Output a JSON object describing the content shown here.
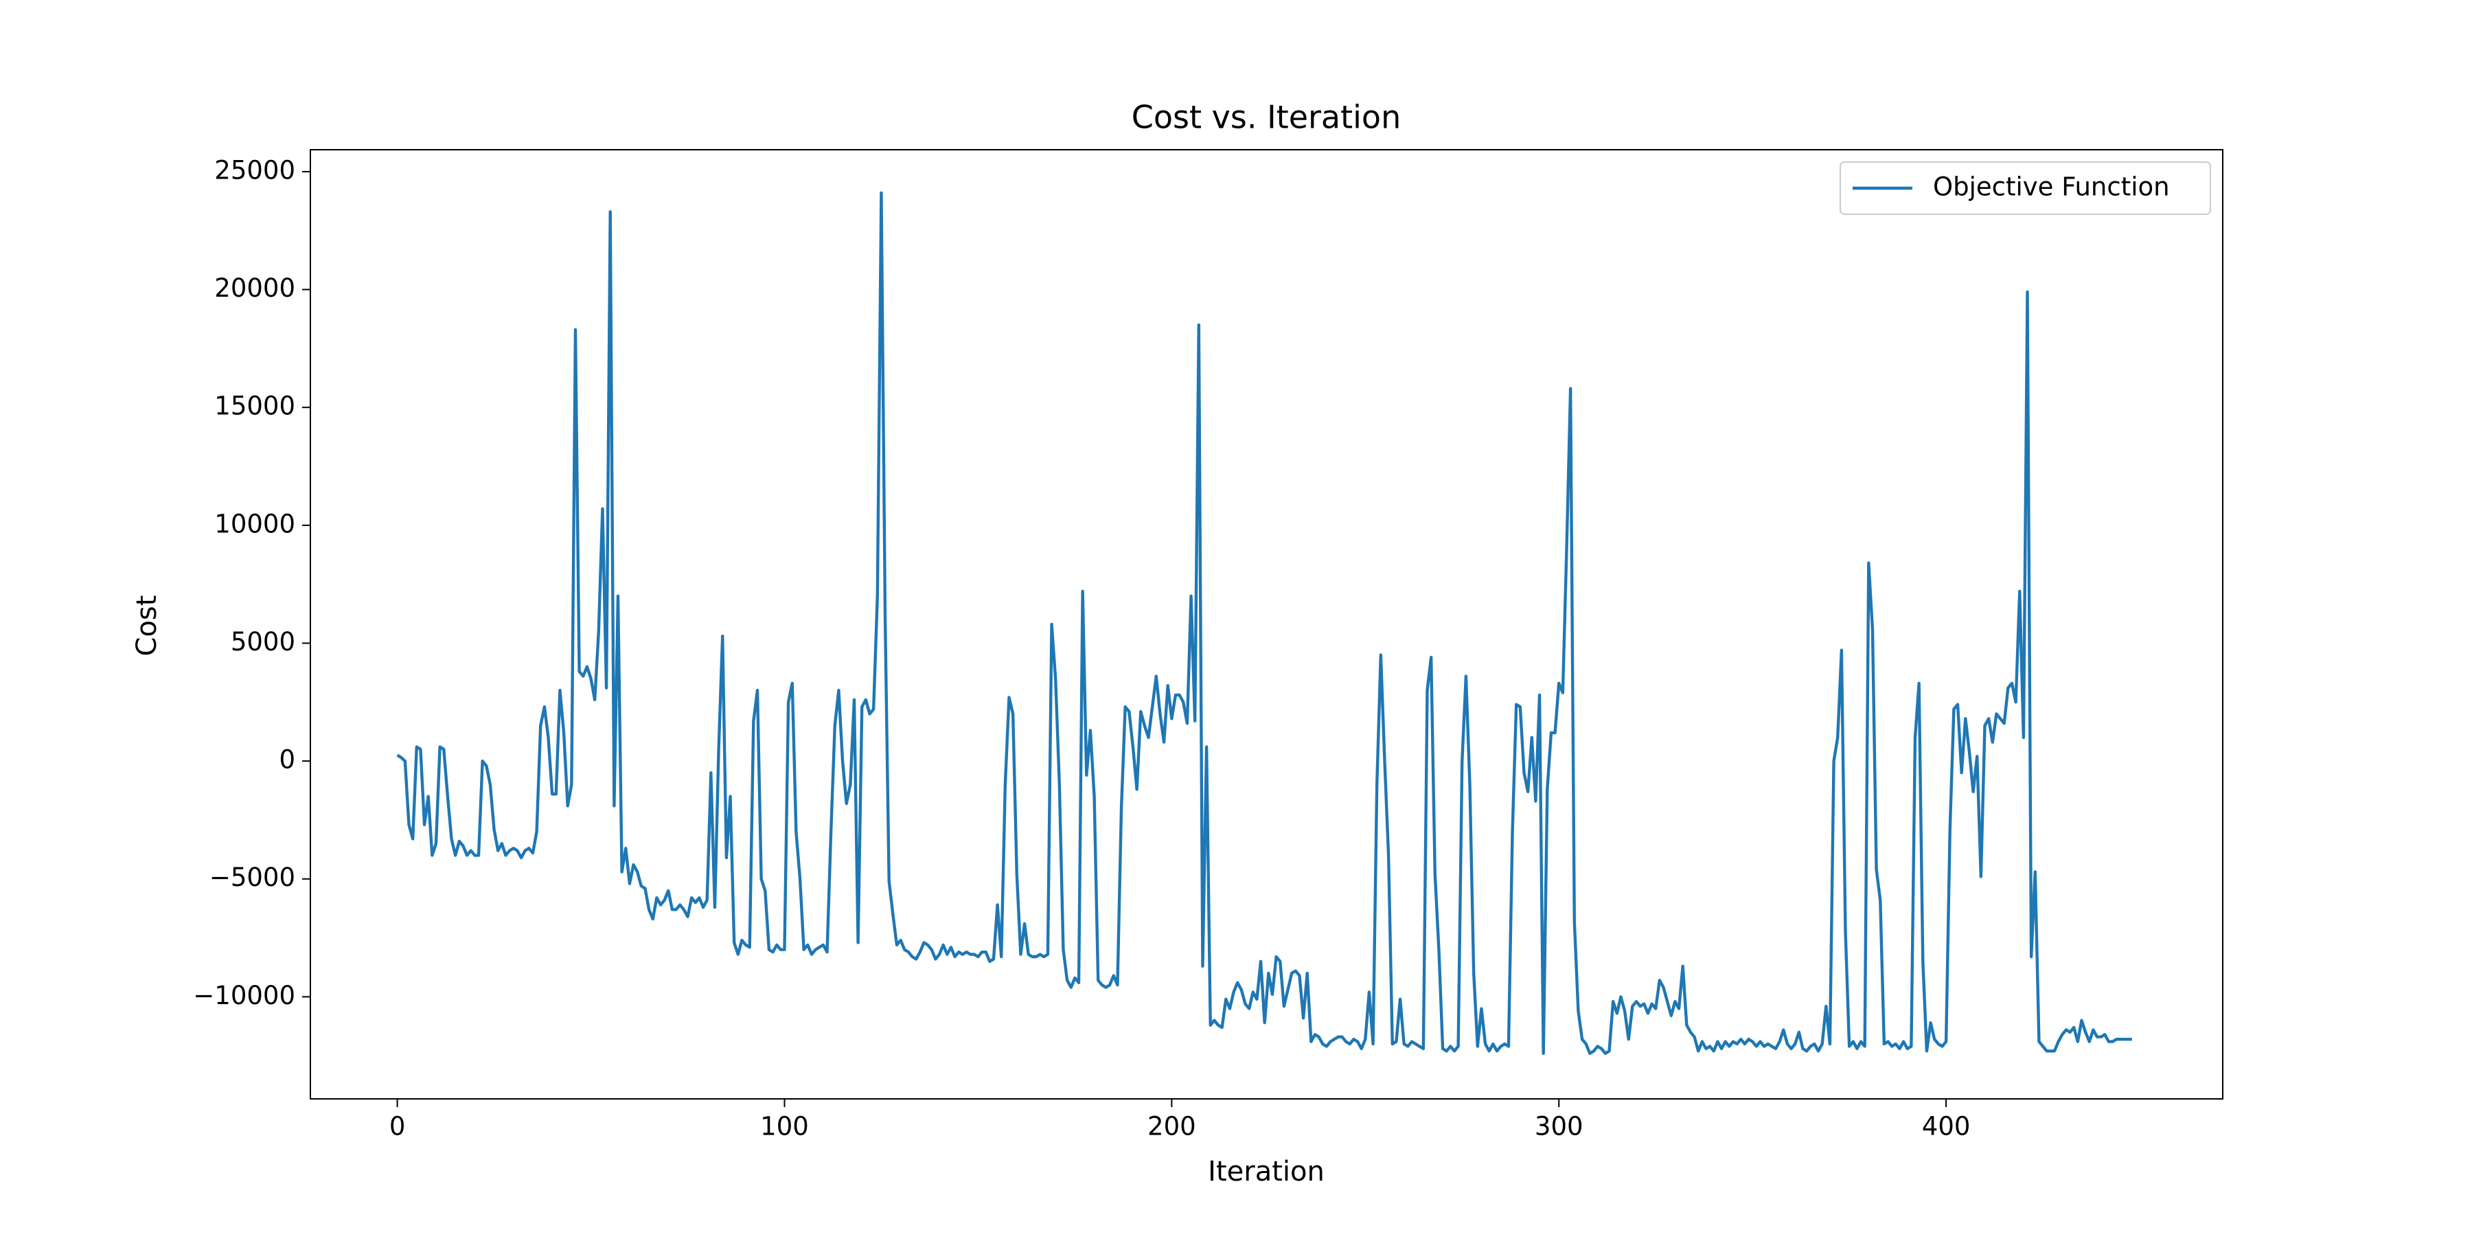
{
  "chart_data": {
    "type": "line",
    "title": "Cost vs. Iteration",
    "x_label": "Iteration",
    "y_label": "Cost",
    "xlim": [
      -22.45,
      471.45
    ],
    "ylim": [
      -14330,
      25930
    ],
    "xticks": [
      0,
      100,
      200,
      300,
      400
    ],
    "yticks": [
      {
        "value": -10000,
        "label": "−10000"
      },
      {
        "value": -5000,
        "label": "−5000"
      },
      0,
      5000,
      10000,
      15000,
      20000,
      25000
    ],
    "grid": false,
    "legend": "upper right",
    "series": [
      {
        "name": "Objective Function",
        "color": "#1f77b4",
        "values": [
          250,
          150,
          0,
          -2700,
          -3300,
          600,
          500,
          -2700,
          -1500,
          -4000,
          -3500,
          600,
          500,
          -1500,
          -3300,
          -4000,
          -3400,
          -3600,
          -4000,
          -3800,
          -4000,
          -4000,
          0,
          -200,
          -1000,
          -2900,
          -3800,
          -3500,
          -4000,
          -3800,
          -3700,
          -3800,
          -4100,
          -3800,
          -3700,
          -3900,
          -3000,
          1500,
          2300,
          1000,
          -1400,
          -1400,
          3000,
          1200,
          -1900,
          -1000,
          18300,
          3800,
          3600,
          4000,
          3500,
          2600,
          5500,
          10700,
          3100,
          23300,
          -1900,
          7000,
          -4700,
          -3700,
          -5200,
          -4400,
          -4700,
          -5300,
          -5400,
          -6300,
          -6700,
          -5800,
          -6100,
          -5900,
          -5500,
          -6300,
          -6300,
          -6100,
          -6300,
          -6600,
          -5800,
          -6000,
          -5800,
          -6200,
          -5900,
          -500,
          -6200,
          500,
          5300,
          -4100,
          -1500,
          -7700,
          -8200,
          -7600,
          -7800,
          -7900,
          1700,
          3000,
          -5000,
          -5500,
          -8000,
          -8100,
          -7800,
          -8000,
          -8000,
          2500,
          3300,
          -3000,
          -5000,
          -8000,
          -7800,
          -8200,
          -8000,
          -7900,
          -7800,
          -8100,
          -3000,
          1500,
          3000,
          0,
          -1800,
          -1000,
          2600,
          -7700,
          2300,
          2600,
          2000,
          2200,
          7000,
          24100,
          6000,
          -5100,
          -6500,
          -7800,
          -7600,
          -8000,
          -8100,
          -8300,
          -8400,
          -8100,
          -7700,
          -7800,
          -8000,
          -8400,
          -8200,
          -7800,
          -8200,
          -7900,
          -8300,
          -8100,
          -8200,
          -8100,
          -8200,
          -8200,
          -8300,
          -8100,
          -8100,
          -8500,
          -8400,
          -6100,
          -8300,
          -1000,
          2700,
          2000,
          -4800,
          -8200,
          -6900,
          -8200,
          -8300,
          -8300,
          -8200,
          -8300,
          -8200,
          5800,
          3500,
          -1000,
          -8000,
          -9300,
          -9600,
          -9200,
          -9400,
          7200,
          -600,
          1300,
          -1500,
          -9300,
          -9500,
          -9600,
          -9500,
          -9100,
          -9500,
          -2000,
          2300,
          2100,
          600,
          -1200,
          2100,
          1500,
          1000,
          2300,
          3600,
          2000,
          800,
          3200,
          1800,
          2800,
          2800,
          2500,
          1600,
          7000,
          1700,
          18500,
          -8700,
          600,
          -11200,
          -11000,
          -11200,
          -11300,
          -10100,
          -10500,
          -9800,
          -9400,
          -9700,
          -10300,
          -10500,
          -9800,
          -10100,
          -8500,
          -11100,
          -9000,
          -9900,
          -8300,
          -8500,
          -10400,
          -9700,
          -9000,
          -8900,
          -9100,
          -10900,
          -9000,
          -11900,
          -11600,
          -11700,
          -12000,
          -12100,
          -11900,
          -11800,
          -11700,
          -11700,
          -11900,
          -12000,
          -11800,
          -11900,
          -12200,
          -11800,
          -9800,
          -12000,
          -1000,
          4500,
          0,
          -4000,
          -12000,
          -11900,
          -10100,
          -12000,
          -12100,
          -11900,
          -12000,
          -12100,
          -12200,
          3000,
          4400,
          -4800,
          -8000,
          -12200,
          -12300,
          -12100,
          -12300,
          -12100,
          0,
          3600,
          -1000,
          -9000,
          -12100,
          -10500,
          -12000,
          -12300,
          -12000,
          -12300,
          -12100,
          -12000,
          -12100,
          -3000,
          2400,
          2300,
          -500,
          -1300,
          1000,
          -1700,
          2800,
          -12400,
          -1200,
          1200,
          1200,
          3300,
          2900,
          9000,
          15800,
          -6800,
          -10600,
          -11800,
          -12000,
          -12400,
          -12300,
          -12100,
          -12200,
          -12400,
          -12300,
          -10200,
          -10700,
          -10000,
          -10600,
          -11800,
          -10400,
          -10200,
          -10400,
          -10300,
          -10700,
          -10300,
          -10500,
          -9300,
          -9600,
          -10200,
          -10800,
          -10200,
          -10500,
          -8700,
          -11200,
          -11500,
          -11700,
          -12300,
          -11900,
          -12200,
          -12100,
          -12300,
          -11900,
          -12200,
          -11900,
          -12100,
          -11900,
          -12000,
          -11800,
          -12000,
          -11800,
          -11900,
          -12100,
          -11900,
          -12100,
          -12000,
          -12100,
          -12200,
          -11900,
          -11400,
          -12000,
          -12200,
          -12000,
          -11500,
          -12200,
          -12300,
          -12100,
          -12000,
          -12300,
          -12000,
          -10400,
          -12000,
          0,
          1000,
          4700,
          -7200,
          -12100,
          -11900,
          -12200,
          -11900,
          -12100,
          8400,
          5600,
          -4600,
          -5900,
          -12000,
          -11900,
          -12100,
          -12000,
          -12200,
          -11900,
          -12200,
          -12100,
          1000,
          3300,
          -8500,
          -12300,
          -11100,
          -11800,
          -12000,
          -12100,
          -11900,
          -2900,
          2200,
          2400,
          -500,
          1800,
          400,
          -1300,
          200,
          -4900,
          1500,
          1800,
          800,
          2000,
          1800,
          1600,
          3100,
          3300,
          2500,
          7200,
          1000,
          19900,
          -8300,
          -4700,
          -11900,
          -12100,
          -12300,
          -12300,
          -12300,
          -11900,
          -11600,
          -11400,
          -11500,
          -11300,
          -11900,
          -11000,
          -11500,
          -11900,
          -11400,
          -11700,
          -11700,
          -11600,
          -11900,
          -11900,
          -11800,
          -11800,
          -11800,
          -11800,
          -11800
        ]
      }
    ]
  }
}
